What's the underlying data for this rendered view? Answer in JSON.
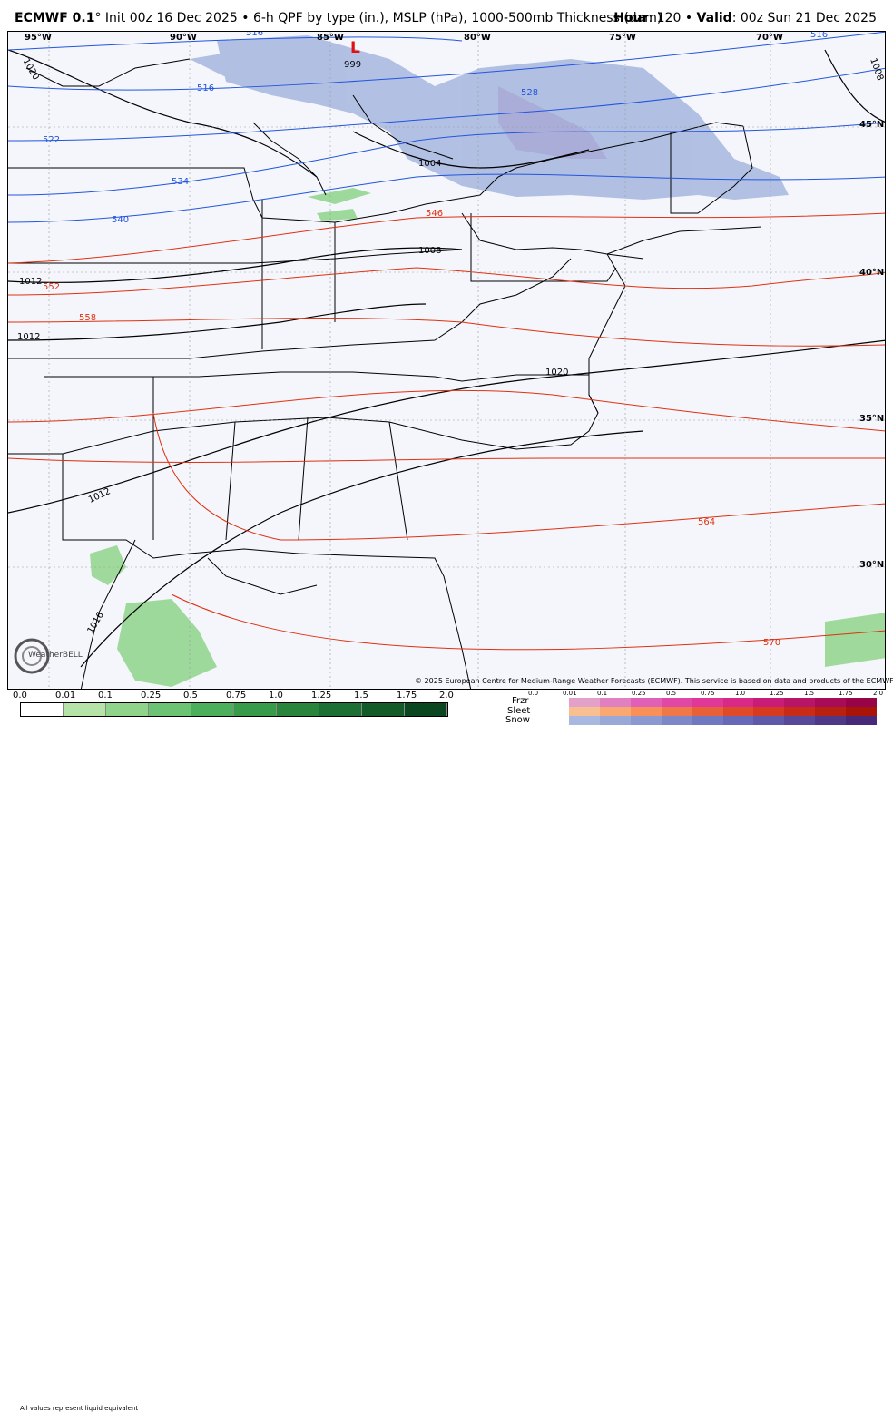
{
  "header": {
    "model": "ECMWF 0.1",
    "deg": "°",
    "subtitle": " Init 00z 16 Dec 2025 • 6-h QPF by type (in.), MSLP (hPa), 1000-500mb Thickness (dam)",
    "hour_label": "Hour",
    "hour_value": ": 120 • ",
    "valid_label": "Valid",
    "valid_value": ": 00z Sun 21 Dec 2025"
  },
  "map": {
    "lon_labels": [
      "95°W",
      "90°W",
      "85°W",
      "80°W",
      "75°W",
      "70°W"
    ],
    "lat_labels": [
      "45°N",
      "40°N",
      "35°N",
      "30°N"
    ],
    "low_marker": "L",
    "low_value": "999",
    "isobar_labels": [
      "1020",
      "1004",
      "1008",
      "1012",
      "1012",
      "1012",
      "1020",
      "1016",
      "1008"
    ],
    "thickness_labels": [
      "516",
      "516",
      "522",
      "528",
      "534",
      "540",
      "546",
      "552",
      "558",
      "564",
      "570",
      "516"
    ],
    "colors": {
      "isobar": "#000000",
      "thickness_cold": "#2255dd",
      "thickness_warm": "#e03010",
      "snow": "#7b93d0",
      "rain": "#8fd48a",
      "land_bg": "#f4f6fb"
    }
  },
  "copyright": "© 2025 European Centre for Medium-Range Weather Forecasts (ECMWF). This service is based on data and products of the ECMWF.",
  "logo_text": "WeatherBELL",
  "legend": {
    "rain_ticks": [
      "0.0",
      "0.01",
      "0.1",
      "0.25",
      "0.5",
      "0.75",
      "1.0",
      "1.25",
      "1.5",
      "1.75",
      "2.0"
    ],
    "rain_colors": [
      "#ffffff",
      "#b6e3a8",
      "#8fd48a",
      "#6cc374",
      "#4caf5c",
      "#389b4a",
      "#29853c",
      "#1d7033",
      "#135c29",
      "#0a461f"
    ],
    "note": "All values represent liquid equivalent",
    "types": [
      "Frzr",
      "Sleet",
      "Snow"
    ],
    "type_ticks": [
      "0.0",
      "0.01",
      "0.1",
      "0.25",
      "0.5",
      "0.75",
      "1.0",
      "1.25",
      "1.5",
      "1.75",
      "2.0"
    ],
    "frzr_colors": [
      "#e3a0c8",
      "#e080c0",
      "#e060b8",
      "#e048a8",
      "#e03898",
      "#d82888",
      "#c81c78",
      "#b81468",
      "#a80c58",
      "#980448"
    ],
    "sleet_colors": [
      "#f8c090",
      "#f8a870",
      "#f89058",
      "#f07848",
      "#e86038",
      "#e04a28",
      "#d83a20",
      "#c82c18",
      "#b82010",
      "#a81408"
    ],
    "snow_colors": [
      "#a8b8e0",
      "#9aa8d8",
      "#8c98d0",
      "#7e88c8",
      "#7078c0",
      "#6868b8",
      "#6058a8",
      "#584898",
      "#503888",
      "#482878"
    ]
  }
}
